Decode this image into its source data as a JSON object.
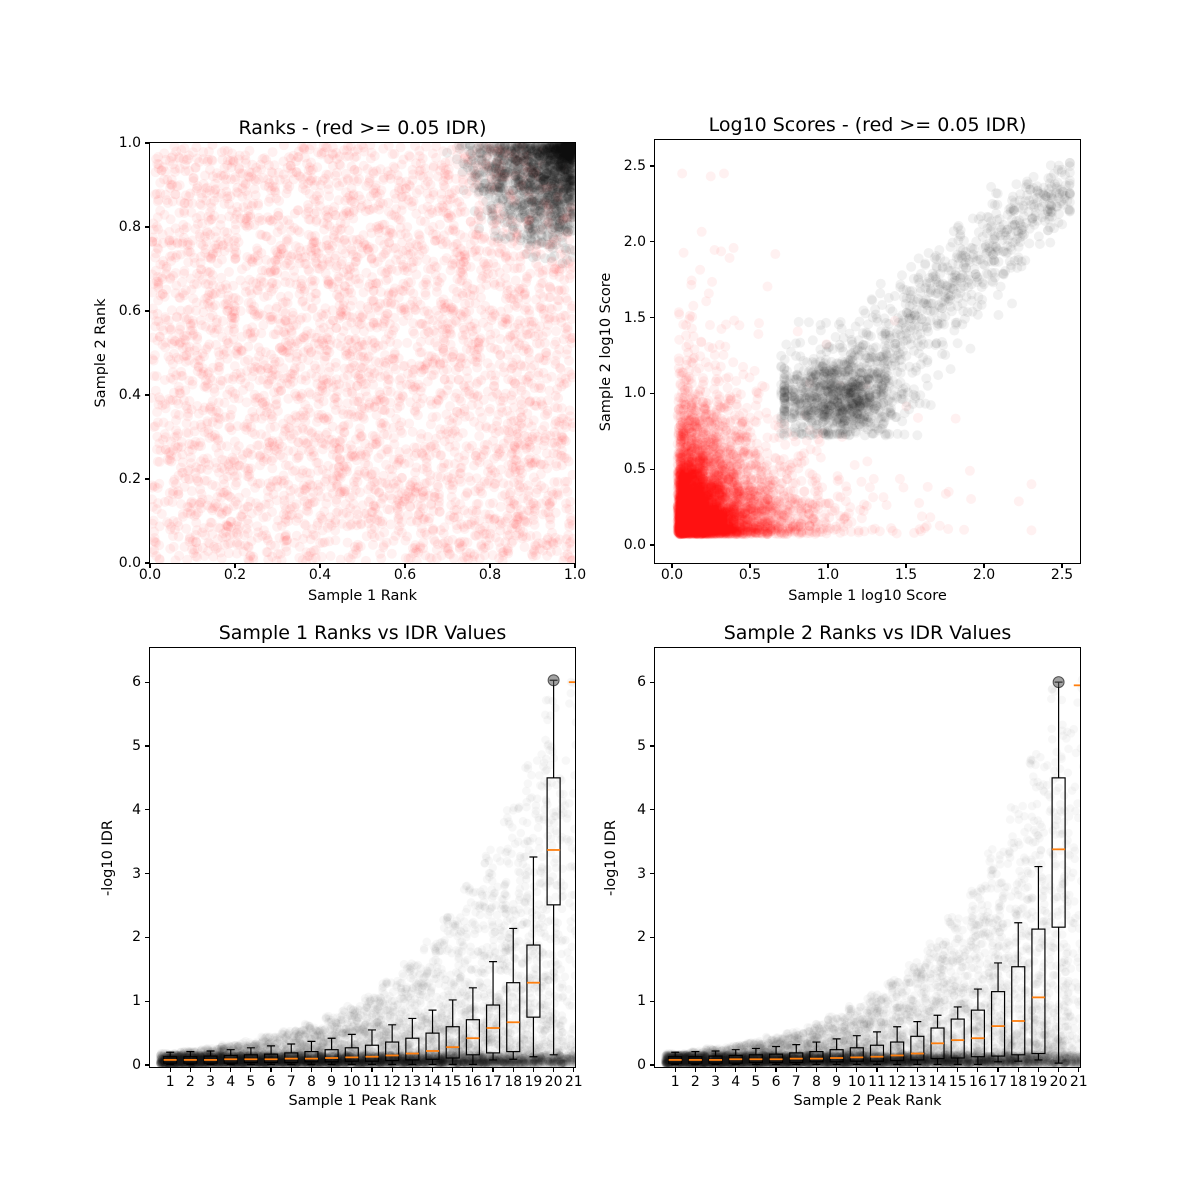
{
  "figure": {
    "background": "#ffffff",
    "kind": "idr-consistency-qc-plots",
    "colors": {
      "red_points": "#ff0000",
      "black_points": "#000000",
      "median": "#ff7f0e",
      "flier_fill": "#555555"
    }
  },
  "chart_data": [
    {
      "id": "ranks-scatter",
      "type": "scatter",
      "title": "Ranks - (red >= 0.05 IDR)",
      "xlabel": "Sample 1 Rank",
      "ylabel": "Sample 2 Rank",
      "xlim": [
        0,
        1
      ],
      "ylim": [
        0,
        1
      ],
      "xticks": [
        0,
        0.2,
        0.4,
        0.6,
        0.8,
        1.0
      ],
      "xtick_labels": [
        "0.0",
        "0.2",
        "0.4",
        "0.6",
        "0.8",
        "1.0"
      ],
      "yticks": [
        0,
        0.2,
        0.4,
        0.6,
        0.8,
        1.0
      ],
      "ytick_labels": [
        "0.0",
        "0.2",
        "0.4",
        "0.6",
        "0.8",
        "1.0"
      ],
      "series": [
        {
          "name": "idr-ge-0.05-red",
          "gen": "uniform2d",
          "seed": 11,
          "count": 4200,
          "color": "#ff0000",
          "alpha": 0.055,
          "radius": 5
        },
        {
          "name": "idr-lt-0.05-black",
          "gen": "corner",
          "seed": 22,
          "count": 1700,
          "color": "#000000",
          "alpha": 0.07,
          "radius": 5,
          "corner": [
            1,
            1
          ],
          "spread": 0.24
        }
      ]
    },
    {
      "id": "log10-scores-scatter",
      "type": "scatter",
      "title": "Log10 Scores - (red >= 0.05 IDR)",
      "xlabel": "Sample 1 log10 Score",
      "ylabel": "Sample 2 log10 Score",
      "xlim": [
        -0.109,
        2.615
      ],
      "ylim": [
        -0.119,
        2.671
      ],
      "xticks": [
        0,
        0.5,
        1.0,
        1.5,
        2.0,
        2.5
      ],
      "xtick_labels": [
        "0.0",
        "0.5",
        "1.0",
        "1.5",
        "2.0",
        "2.5"
      ],
      "yticks": [
        0,
        0.5,
        1.0,
        1.5,
        2.0,
        2.5
      ],
      "ytick_labels": [
        "0.0",
        "0.5",
        "1.0",
        "1.5",
        "2.0",
        "2.5"
      ],
      "series": [
        {
          "name": "idr-ge-0.05-red",
          "gen": "exp2d",
          "seed": 33,
          "count": 6200,
          "color": "#ff0000",
          "alpha": 0.055,
          "radius": 5,
          "x0": 0.04,
          "sx": 0.2,
          "y0": 0.07,
          "sy": 0.22,
          "tail_frac": 0.035,
          "tail_scale": 0.55,
          "xmax": 2.3,
          "ymax": 2.45,
          "quant": 0.018,
          "quant_frac": 0.3
        },
        {
          "name": "idr-lt-0.05-black-diagonal",
          "gen": "diag",
          "seed": 44,
          "count": 900,
          "color": "#000000",
          "alpha": 0.055,
          "radius": 5,
          "m0": 0.88,
          "mrange": 1.64,
          "mpow": 1.15,
          "ymin": 0.72,
          "xmaxc": 2.55,
          "ymaxc": 2.52
        },
        {
          "name": "idr-lt-0.05-black-cluster",
          "gen": "blob",
          "seed": 55,
          "count": 750,
          "color": "#000000",
          "alpha": 0.055,
          "radius": 5,
          "cx": 1.08,
          "cy": 0.95,
          "sx": 0.21,
          "sy": 0.125,
          "ymin": 0.72,
          "xmin": 0.72,
          "xmax": 1.75
        }
      ]
    },
    {
      "id": "sample1-rank-vs-idr",
      "type": "box+scatter",
      "title": "Sample 1 Ranks vs IDR Values",
      "xlabel": "Sample 1 Peak Rank",
      "ylabel": "-log10 IDR",
      "xlim": [
        0,
        21.06
      ],
      "ylim": [
        -0.031,
        6.535
      ],
      "xticks": [
        1,
        2,
        3,
        4,
        5,
        6,
        7,
        8,
        9,
        10,
        11,
        12,
        13,
        14,
        15,
        16,
        17,
        18,
        19,
        20,
        21
      ],
      "xtick_labels": [
        "1",
        "2",
        "3",
        "4",
        "5",
        "6",
        "7",
        "8",
        "9",
        "10",
        "11",
        "12",
        "13",
        "14",
        "15",
        "16",
        "17",
        "18",
        "19",
        "20",
        "21"
      ],
      "yticks": [
        0,
        1,
        2,
        3,
        4,
        5,
        6
      ],
      "ytick_labels": [
        "0",
        "1",
        "2",
        "3",
        "4",
        "5",
        "6"
      ],
      "median_color": "#ff7f0e",
      "cloud": {
        "seed": 66,
        "color": "#000000",
        "alpha": 0.032,
        "radius": 4.3,
        "n_per_rank": 260,
        "n_last": 130,
        "env_a": 0.14,
        "env_b": 0.187,
        "pow": 2.6,
        "band_alpha": 0.045,
        "band_base": 250,
        "band_slope": 9,
        "band_min": 60,
        "band_h": 0.145,
        "ycap": 6.05
      },
      "flier": {
        "x": 20,
        "y": 6.03
      },
      "boxes": [
        [
          0.03,
          0.08,
          0.13,
          0.01,
          0.2
        ],
        [
          0.03,
          0.08,
          0.13,
          0.01,
          0.21
        ],
        [
          0.03,
          0.08,
          0.14,
          0.01,
          0.22
        ],
        [
          0.03,
          0.09,
          0.15,
          0.01,
          0.24
        ],
        [
          0.04,
          0.09,
          0.16,
          0.01,
          0.27
        ],
        [
          0.04,
          0.09,
          0.17,
          0.01,
          0.3
        ],
        [
          0.04,
          0.1,
          0.19,
          0.01,
          0.33
        ],
        [
          0.05,
          0.1,
          0.21,
          0.01,
          0.37
        ],
        [
          0.05,
          0.11,
          0.24,
          0.01,
          0.42
        ],
        [
          0.06,
          0.12,
          0.27,
          0.01,
          0.48
        ],
        [
          0.06,
          0.13,
          0.31,
          0.01,
          0.55
        ],
        [
          0.07,
          0.15,
          0.36,
          0.01,
          0.63
        ],
        [
          0.08,
          0.18,
          0.42,
          0.01,
          0.73
        ],
        [
          0.09,
          0.22,
          0.5,
          0.01,
          0.86
        ],
        [
          0.11,
          0.28,
          0.6,
          0.01,
          1.02
        ],
        [
          0.16,
          0.42,
          0.71,
          0.01,
          1.21
        ],
        [
          0.19,
          0.58,
          0.94,
          0.08,
          1.62
        ],
        [
          0.21,
          0.67,
          1.29,
          0.09,
          2.14
        ],
        [
          0.75,
          1.29,
          1.88,
          0.13,
          3.26
        ],
        [
          2.51,
          3.37,
          4.5,
          0.16,
          6.03
        ],
        [
          null,
          6.0,
          null,
          null,
          null
        ]
      ]
    },
    {
      "id": "sample2-rank-vs-idr",
      "type": "box+scatter",
      "title": "Sample 2 Ranks vs IDR Values",
      "xlabel": "Sample 2 Peak Rank",
      "ylabel": "-log10 IDR",
      "xlim": [
        0,
        21.06
      ],
      "ylim": [
        -0.031,
        6.535
      ],
      "xticks": [
        1,
        2,
        3,
        4,
        5,
        6,
        7,
        8,
        9,
        10,
        11,
        12,
        13,
        14,
        15,
        16,
        17,
        18,
        19,
        20,
        21
      ],
      "xtick_labels": [
        "1",
        "2",
        "3",
        "4",
        "5",
        "6",
        "7",
        "8",
        "9",
        "10",
        "11",
        "12",
        "13",
        "14",
        "15",
        "16",
        "17",
        "18",
        "19",
        "20",
        "21"
      ],
      "yticks": [
        0,
        1,
        2,
        3,
        4,
        5,
        6
      ],
      "ytick_labels": [
        "0",
        "1",
        "2",
        "3",
        "4",
        "5",
        "6"
      ],
      "median_color": "#ff7f0e",
      "cloud": {
        "seed": 77,
        "color": "#000000",
        "alpha": 0.032,
        "radius": 4.3,
        "n_per_rank": 260,
        "n_last": 130,
        "env_a": 0.14,
        "env_b": 0.187,
        "pow": 2.6,
        "band_alpha": 0.045,
        "band_base": 250,
        "band_slope": 9,
        "band_min": 60,
        "band_h": 0.145,
        "ycap": 6.05
      },
      "flier": {
        "x": 20,
        "y": 6.0
      },
      "boxes": [
        [
          0.03,
          0.08,
          0.13,
          0.01,
          0.2
        ],
        [
          0.03,
          0.08,
          0.13,
          0.01,
          0.21
        ],
        [
          0.03,
          0.08,
          0.14,
          0.01,
          0.22
        ],
        [
          0.03,
          0.09,
          0.15,
          0.01,
          0.24
        ],
        [
          0.04,
          0.09,
          0.16,
          0.01,
          0.26
        ],
        [
          0.04,
          0.09,
          0.17,
          0.01,
          0.29
        ],
        [
          0.04,
          0.1,
          0.19,
          0.01,
          0.32
        ],
        [
          0.05,
          0.1,
          0.21,
          0.01,
          0.36
        ],
        [
          0.05,
          0.11,
          0.24,
          0.01,
          0.41
        ],
        [
          0.06,
          0.12,
          0.27,
          0.01,
          0.46
        ],
        [
          0.06,
          0.13,
          0.31,
          0.01,
          0.52
        ],
        [
          0.07,
          0.15,
          0.36,
          0.01,
          0.6
        ],
        [
          0.08,
          0.18,
          0.45,
          0.01,
          0.68
        ],
        [
          0.1,
          0.34,
          0.58,
          0.01,
          0.78
        ],
        [
          0.11,
          0.39,
          0.72,
          0.01,
          0.91
        ],
        [
          0.13,
          0.42,
          0.86,
          0.01,
          1.19
        ],
        [
          0.14,
          0.61,
          1.15,
          0.05,
          1.6
        ],
        [
          0.16,
          0.69,
          1.54,
          0.06,
          2.23
        ],
        [
          0.18,
          1.06,
          2.13,
          0.08,
          3.11
        ],
        [
          2.16,
          3.38,
          4.5,
          0.03,
          6.0
        ],
        [
          null,
          5.95,
          null,
          null,
          null
        ]
      ]
    }
  ]
}
